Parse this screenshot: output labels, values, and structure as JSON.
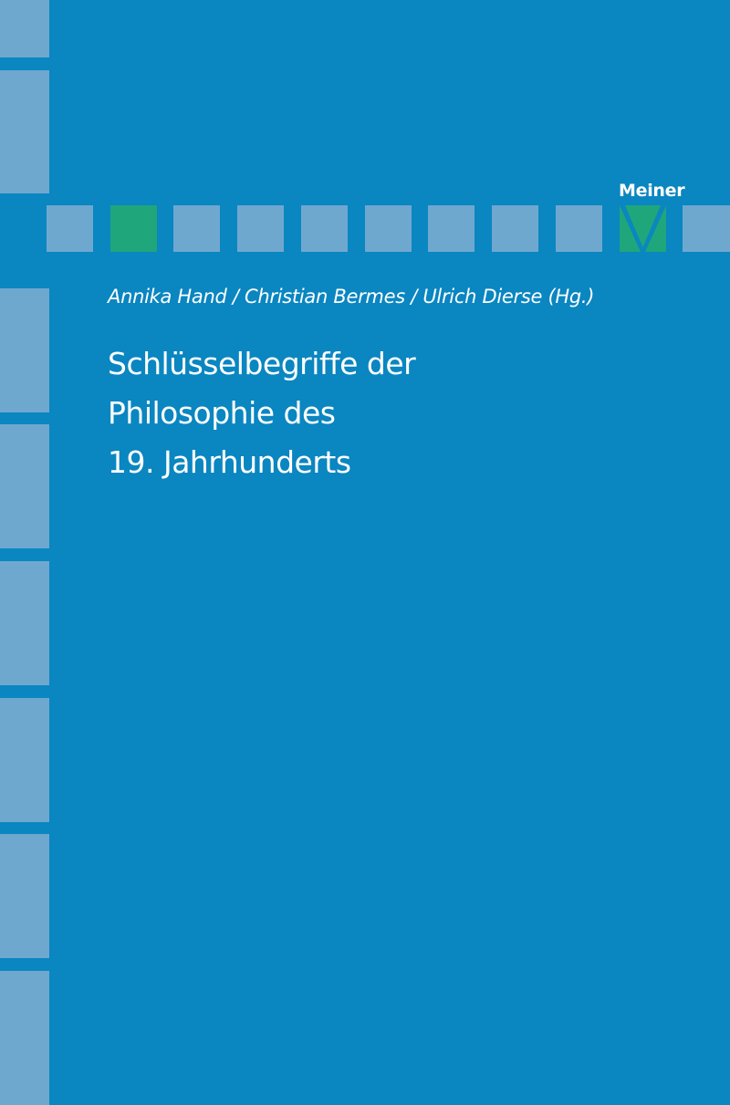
{
  "cover": {
    "publisher": "Meiner",
    "authors": "Annika Hand / Christian Bermes / Ulrich Dierse (Hg.)",
    "title_lines": [
      "Schlüsselbegriffe der",
      "Philosophie des",
      "19. Jahrhunderts"
    ],
    "colors": {
      "background": "#0a86c1",
      "block": "#6fa8cf",
      "accent_green": "#1fa77b",
      "text": "#ffffff"
    }
  }
}
